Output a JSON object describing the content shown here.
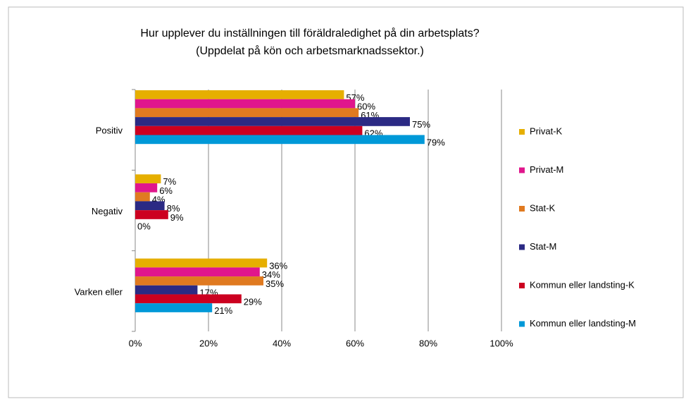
{
  "chart_data": {
    "type": "hbar",
    "title": "Hur upplever du inställningen till föräldraledighet på din arbetsplats?",
    "subtitle": "(Uppdelat på kön och arbetsmarknadssektor.)",
    "categories": [
      "Positiv",
      "Negativ",
      "Varken eller"
    ],
    "series": [
      {
        "name": "Privat-K",
        "color": "#e6af00",
        "values": [
          57,
          7,
          36
        ],
        "value_labels": [
          "57%",
          "7%",
          "36%"
        ]
      },
      {
        "name": "Privat-M",
        "color": "#e0168c",
        "values": [
          60,
          6,
          34
        ],
        "value_labels": [
          "60%",
          "6%",
          "34%"
        ]
      },
      {
        "name": "Stat-K",
        "color": "#e07a20",
        "values": [
          61,
          4,
          35
        ],
        "value_labels": [
          "61%",
          "4%",
          "35%"
        ]
      },
      {
        "name": "Stat-M",
        "color": "#2b2a84",
        "values": [
          75,
          8,
          17
        ],
        "value_labels": [
          "75%",
          "8%",
          "17%"
        ]
      },
      {
        "name": "Kommun eller landsting-K",
        "color": "#cc0020",
        "values": [
          62,
          9,
          29
        ],
        "value_labels": [
          "62%",
          "9%",
          "29%"
        ]
      },
      {
        "name": "Kommun eller landsting-M",
        "color": "#0099d8",
        "values": [
          79,
          0,
          21
        ],
        "value_labels": [
          "79%",
          "0%",
          "21%"
        ]
      }
    ],
    "xlim": [
      0,
      100
    ],
    "xticks": [
      {
        "value": 0,
        "label": "0%"
      },
      {
        "value": 20,
        "label": "20%"
      },
      {
        "value": 40,
        "label": "40%"
      },
      {
        "value": 60,
        "label": "60%"
      },
      {
        "value": 80,
        "label": "80%"
      },
      {
        "value": 100,
        "label": "100%"
      }
    ],
    "grid": true,
    "legend": "right"
  }
}
